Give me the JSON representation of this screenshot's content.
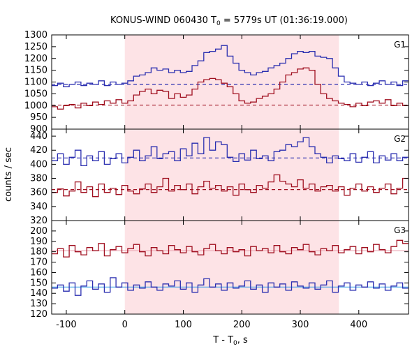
{
  "chart_data": {
    "type": "line",
    "title": "KONUS-WIND 060430 T₀ = 5779s UT (01:36:19.000)",
    "title_parts": {
      "prefix": "KONUS-WIND 060430 T",
      "sub": "0",
      "suffix": " = 5779s UT (01:36:19.000)"
    },
    "xlabel_parts": {
      "prefix": "T - T",
      "sub": "0",
      "suffix": ", s"
    },
    "ylabel": "counts / sec",
    "xlim": [
      -125,
      485
    ],
    "x_ticks": [
      -100,
      0,
      100,
      200,
      300,
      400
    ],
    "highlight_interval": [
      0,
      366
    ],
    "highlight_color": "#fde3e6",
    "colors": {
      "blue": "#2b2fb0",
      "red": "#a01020",
      "light_blue": "#3aa0e8",
      "pink": "#e89aaa"
    },
    "panels": [
      {
        "label": "G1",
        "ylim": [
          900,
          1300
        ],
        "y_ticks": [
          900,
          950,
          1000,
          1050,
          1100,
          1150,
          1200,
          1250,
          1300
        ],
        "background_levels": [
          {
            "series": "blue",
            "value": 1090
          },
          {
            "series": "red",
            "value": 1002
          }
        ],
        "series": [
          {
            "color_key": "blue",
            "x_start": -125,
            "step": 10,
            "values": [
              1085,
              1095,
              1080,
              1090,
              1100,
              1085,
              1095,
              1090,
              1105,
              1085,
              1100,
              1090,
              1095,
              1105,
              1125,
              1130,
              1140,
              1160,
              1150,
              1155,
              1140,
              1150,
              1140,
              1145,
              1170,
              1190,
              1225,
              1230,
              1240,
              1255,
              1210,
              1180,
              1150,
              1140,
              1130,
              1140,
              1145,
              1160,
              1170,
              1180,
              1200,
              1220,
              1230,
              1225,
              1230,
              1210,
              1205,
              1200,
              1160,
              1125,
              1100,
              1095,
              1090,
              1100,
              1085,
              1095,
              1105,
              1090,
              1100,
              1085,
              1105
            ]
          },
          {
            "color_key": "red",
            "x_start": -125,
            "step": 10,
            "values": [
              995,
              985,
              1000,
              1005,
              990,
              1010,
              1000,
              1015,
              1005,
              1020,
              1010,
              1025,
              1010,
              1020,
              1045,
              1060,
              1070,
              1050,
              1065,
              1060,
              1030,
              1050,
              1035,
              1045,
              1070,
              1100,
              1110,
              1115,
              1110,
              1095,
              1080,
              1050,
              1020,
              1010,
              1015,
              1030,
              1040,
              1050,
              1070,
              1100,
              1130,
              1140,
              1155,
              1160,
              1150,
              1090,
              1050,
              1030,
              1020,
              1010,
              1005,
              995,
              1010,
              1000,
              1015,
              1020,
              1010,
              1025,
              1000,
              1010,
              1000
            ]
          }
        ]
      },
      {
        "label": "G2",
        "ylim": [
          320,
          450
        ],
        "y_ticks": [
          320,
          340,
          360,
          380,
          400,
          420,
          440
        ],
        "background_levels": [
          {
            "series": "blue",
            "value": 409
          },
          {
            "series": "red",
            "value": 364
          }
        ],
        "series": [
          {
            "color_key": "blue",
            "x_start": -125,
            "step": 10,
            "values": [
              405,
              415,
              400,
              410,
              420,
              398,
              412,
              405,
              418,
              400,
              408,
              415,
              402,
              410,
              420,
              405,
              412,
              425,
              408,
              415,
              418,
              405,
              422,
              412,
              430,
              415,
              438,
              420,
              432,
              428,
              410,
              404,
              415,
              406,
              420,
              408,
              412,
              405,
              418,
              420,
              428,
              425,
              432,
              438,
              425,
              415,
              410,
              402,
              412,
              408,
              405,
              415,
              403,
              410,
              418,
              402,
              412,
              406,
              415,
              405,
              410
            ]
          },
          {
            "color_key": "red",
            "x_start": -125,
            "step": 10,
            "values": [
              360,
              365,
              355,
              362,
              375,
              360,
              368,
              354,
              372,
              360,
              366,
              357,
              370,
              362,
              358,
              365,
              372,
              360,
              368,
              380,
              362,
              370,
              364,
              372,
              358,
              368,
              376,
              366,
              370,
              362,
              368,
              356,
              372,
              364,
              360,
              370,
              366,
              375,
              385,
              376,
              372,
              368,
              378,
              366,
              372,
              362,
              368,
              370,
              362,
              368,
              356,
              366,
              372,
              362,
              368,
              360,
              366,
              372,
              358,
              366,
              380
            ]
          }
        ]
      },
      {
        "label": "G3",
        "ylim": [
          120,
          210
        ],
        "y_ticks": [
          120,
          130,
          140,
          150,
          160,
          170,
          180,
          190,
          200
        ],
        "background_levels": [],
        "reference_lines": [
          {
            "color_key": "pink",
            "value": 181
          },
          {
            "color_key": "light_blue",
            "value": 146
          }
        ],
        "series": [
          {
            "color_key": "blue",
            "x_start": -125,
            "step": 10,
            "values": [
              145,
              148,
              142,
              150,
              138,
              147,
              152,
              144,
              149,
              141,
              155,
              146,
              150,
              143,
              148,
              145,
              151,
              146,
              143,
              149,
              147,
              152,
              144,
              150,
              141,
              148,
              154,
              146,
              149,
              143,
              150,
              145,
              147,
              152,
              144,
              148,
              141,
              150,
              146,
              149,
              143,
              151,
              147,
              145,
              150,
              144,
              148,
              152,
              141,
              147,
              150,
              143,
              148,
              146,
              151,
              145,
              149,
              143,
              147,
              150,
              145
            ]
          },
          {
            "color_key": "red",
            "x_start": -125,
            "step": 10,
            "values": [
              178,
              183,
              175,
              186,
              180,
              177,
              184,
              181,
              188,
              176,
              182,
              185,
              179,
              183,
              187,
              180,
              176,
              184,
              181,
              178,
              186,
              182,
              179,
              185,
              180,
              177,
              183,
              187,
              181,
              178,
              184,
              180,
              182,
              176,
              185,
              181,
              183,
              179,
              186,
              180,
              178,
              184,
              182,
              187,
              180,
              177,
              183,
              181,
              186,
              179,
              182,
              185,
              178,
              184,
              180,
              187,
              182,
              179,
              185,
              191,
              188
            ]
          }
        ]
      }
    ]
  }
}
